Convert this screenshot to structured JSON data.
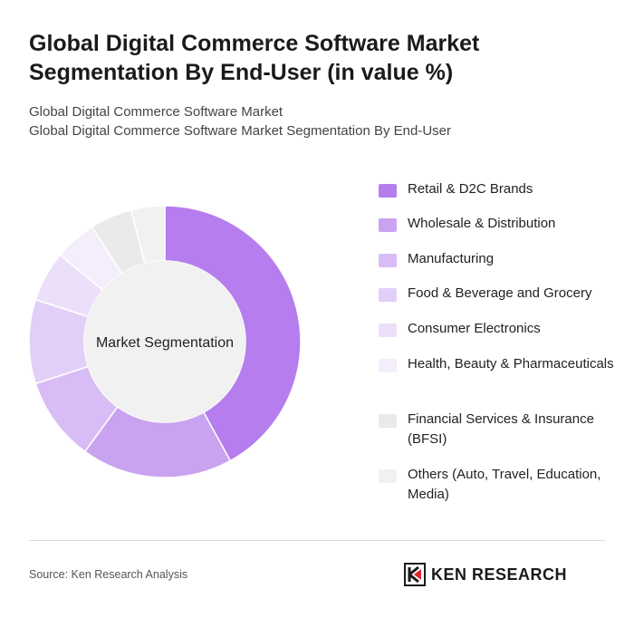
{
  "header": {
    "title": "Global Digital Commerce Software Market Segmentation By End-User (in value %)",
    "subtitle_line1": "Global Digital Commerce Software Market",
    "subtitle_line2": "Global Digital Commerce Software Market Segmentation By End-User"
  },
  "chart_data": {
    "type": "pie",
    "center_label": "Market Segmentation",
    "unit": "%",
    "legend_position": "right",
    "slices": [
      {
        "label": "Retail & D2C Brands",
        "value": 42,
        "color": "#b57ded"
      },
      {
        "label": "Wholesale & Distribution",
        "value": 18,
        "color": "#c9a3f0"
      },
      {
        "label": "Manufacturing",
        "value": 10,
        "color": "#d8bcf5"
      },
      {
        "label": "Food & Beverage and Grocery",
        "value": 10,
        "color": "#e2cff7"
      },
      {
        "label": "Consumer Electronics",
        "value": 6,
        "color": "#ebdffa"
      },
      {
        "label": "Health, Beauty & Pharmaceuticals",
        "value": 5,
        "color": "#f3edfc"
      },
      {
        "label": "Financial Services & Insurance (BFSI)",
        "value": 5,
        "color": "#eaeaea"
      },
      {
        "label": "Others (Auto, Travel, Education, Media)",
        "value": 4,
        "color": "#f1f1f1"
      }
    ]
  },
  "footer": {
    "source": "Source: Ken Research Analysis",
    "logo_text": "KEN RESEARCH",
    "logo_icon": "ken-research-logo-icon"
  }
}
